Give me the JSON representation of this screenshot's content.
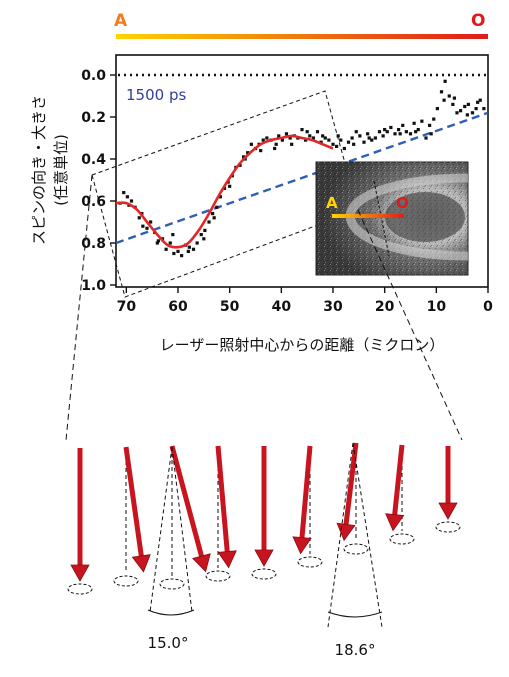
{
  "colors": {
    "gradient_start": "#ffd400",
    "gradient_end": "#e01a1a",
    "label_A": "#f47b20",
    "label_O": "#e01a1a",
    "fit_curve": "#e32626",
    "dashed_line": "#2e5fb3",
    "annotation_blue": "#2f3f9e",
    "arrow": "#c8141e"
  },
  "gradient_bar": {
    "start_label": "A",
    "end_label": "O"
  },
  "inset": {
    "start_label": "A",
    "end_label": "O"
  },
  "arrows_figure": {
    "tilts_deg": [
      0,
      -8,
      -15,
      -5,
      0,
      5,
      7,
      6,
      0
    ],
    "angle_labels": [
      "15.0°",
      "18.6°"
    ]
  },
  "chart_data": {
    "type": "scatter",
    "annotation": "1500 ps",
    "xlabel": "レーザー照射中心からの距離（ミクロン）",
    "ylabel_line1": "スピンの向き・大きさ",
    "ylabel_line2": "(任意単位)",
    "xlim": [
      72,
      0
    ],
    "ylim": [
      0.0,
      1.0
    ],
    "y_inverted": true,
    "x_ticks": [
      70,
      60,
      50,
      40,
      30,
      20,
      10,
      0
    ],
    "y_ticks": [
      "0.0",
      "0.2",
      "0.4",
      "0.6",
      "0.8",
      "1.0"
    ],
    "series": [
      {
        "kind": "points",
        "points": [
          [
            71.2,
            0.61
          ],
          [
            70.5,
            0.56
          ],
          [
            69.8,
            0.58
          ],
          [
            69.0,
            0.6
          ],
          [
            68.3,
            0.63
          ],
          [
            67.5,
            0.68
          ],
          [
            66.8,
            0.72
          ],
          [
            66.0,
            0.73
          ],
          [
            65.3,
            0.7
          ],
          [
            64.5,
            0.75
          ],
          [
            63.8,
            0.79
          ],
          [
            63.0,
            0.78
          ],
          [
            62.3,
            0.83
          ],
          [
            61.5,
            0.8
          ],
          [
            60.8,
            0.85
          ],
          [
            60.0,
            0.84
          ],
          [
            59.3,
            0.86
          ],
          [
            58.5,
            0.81
          ],
          [
            57.8,
            0.82
          ],
          [
            57.0,
            0.83
          ],
          [
            56.3,
            0.8
          ],
          [
            55.5,
            0.76
          ],
          [
            54.8,
            0.74
          ],
          [
            54.0,
            0.7
          ],
          [
            53.3,
            0.66
          ],
          [
            52.5,
            0.63
          ],
          [
            51.8,
            0.58
          ],
          [
            51.0,
            0.54
          ],
          [
            50.3,
            0.51
          ],
          [
            49.5,
            0.48
          ],
          [
            48.8,
            0.44
          ],
          [
            48.0,
            0.43
          ],
          [
            47.3,
            0.39
          ],
          [
            46.5,
            0.37
          ],
          [
            45.8,
            0.33
          ],
          [
            45.0,
            0.35
          ],
          [
            44.3,
            0.33
          ],
          [
            43.5,
            0.31
          ],
          [
            42.8,
            0.3
          ],
          [
            42.0,
            0.31
          ],
          [
            41.3,
            0.35
          ],
          [
            40.5,
            0.29
          ],
          [
            39.8,
            0.31
          ],
          [
            39.0,
            0.28
          ],
          [
            38.3,
            0.3
          ],
          [
            37.5,
            0.29
          ],
          [
            36.8,
            0.3
          ],
          [
            36.0,
            0.26
          ],
          [
            35.3,
            0.31
          ],
          [
            34.5,
            0.29
          ],
          [
            33.8,
            0.3
          ],
          [
            33.0,
            0.27
          ],
          [
            32.3,
            0.32
          ],
          [
            31.5,
            0.3
          ],
          [
            30.8,
            0.31
          ],
          [
            30.0,
            0.33
          ],
          [
            29.3,
            0.34
          ],
          [
            28.5,
            0.31
          ],
          [
            27.8,
            0.35
          ],
          [
            27.0,
            0.32
          ],
          [
            26.3,
            0.3
          ],
          [
            25.5,
            0.27
          ],
          [
            24.8,
            0.29
          ],
          [
            24.0,
            0.32
          ],
          [
            23.3,
            0.28
          ],
          [
            22.5,
            0.31
          ],
          [
            21.8,
            0.3
          ],
          [
            21.0,
            0.27
          ],
          [
            20.3,
            0.29
          ],
          [
            19.5,
            0.27
          ],
          [
            18.8,
            0.25
          ],
          [
            18.0,
            0.28
          ],
          [
            17.3,
            0.26
          ],
          [
            16.5,
            0.24
          ],
          [
            15.8,
            0.27
          ],
          [
            15.0,
            0.28
          ],
          [
            14.3,
            0.23
          ],
          [
            13.5,
            0.26
          ],
          [
            12.8,
            0.22
          ],
          [
            12.0,
            0.3
          ],
          [
            11.3,
            0.24
          ],
          [
            10.5,
            0.21
          ],
          [
            9.8,
            0.16
          ],
          [
            9.0,
            0.08
          ],
          [
            8.3,
            0.03
          ],
          [
            7.5,
            0.1
          ],
          [
            6.8,
            0.14
          ],
          [
            6.0,
            0.18
          ],
          [
            5.3,
            0.17
          ],
          [
            4.5,
            0.15
          ],
          [
            3.8,
            0.14
          ],
          [
            3.0,
            0.18
          ],
          [
            2.3,
            0.16
          ],
          [
            1.5,
            0.12
          ],
          [
            0.8,
            0.16
          ],
          [
            69.5,
            0.62
          ],
          [
            67.0,
            0.66
          ],
          [
            64.0,
            0.8
          ],
          [
            61.0,
            0.76
          ],
          [
            58.0,
            0.84
          ],
          [
            55.0,
            0.78
          ],
          [
            53.0,
            0.68
          ],
          [
            50.0,
            0.53
          ],
          [
            47.0,
            0.4
          ],
          [
            44.0,
            0.36
          ],
          [
            41.0,
            0.33
          ],
          [
            38.0,
            0.33
          ],
          [
            35.0,
            0.27
          ],
          [
            32.0,
            0.29
          ],
          [
            29.0,
            0.29
          ],
          [
            26.0,
            0.33
          ],
          [
            23.0,
            0.3
          ],
          [
            20.0,
            0.26
          ],
          [
            17.0,
            0.28
          ],
          [
            14.0,
            0.27
          ],
          [
            11.0,
            0.28
          ],
          [
            8.5,
            0.12
          ],
          [
            6.5,
            0.11
          ],
          [
            4.0,
            0.19
          ],
          [
            2.0,
            0.13
          ]
        ]
      },
      {
        "kind": "fit_curve",
        "points": [
          [
            72,
            0.61
          ],
          [
            70,
            0.61
          ],
          [
            68,
            0.64
          ],
          [
            66,
            0.7
          ],
          [
            64,
            0.76
          ],
          [
            62,
            0.81
          ],
          [
            60,
            0.82
          ],
          [
            58,
            0.8
          ],
          [
            56,
            0.74
          ],
          [
            54,
            0.66
          ],
          [
            52,
            0.57
          ],
          [
            50,
            0.49
          ],
          [
            48,
            0.42
          ],
          [
            46,
            0.37
          ],
          [
            44,
            0.33
          ],
          [
            42,
            0.31
          ],
          [
            40,
            0.3
          ],
          [
            38,
            0.29
          ],
          [
            36,
            0.3
          ],
          [
            34,
            0.31
          ],
          [
            32,
            0.33
          ],
          [
            30,
            0.35
          ]
        ]
      },
      {
        "kind": "linear_fit",
        "points": [
          [
            72,
            0.8
          ],
          [
            0,
            0.18
          ]
        ]
      },
      {
        "kind": "reference_line",
        "points": [
          [
            72,
            0.0
          ],
          [
            0,
            0.0
          ]
        ]
      }
    ]
  }
}
